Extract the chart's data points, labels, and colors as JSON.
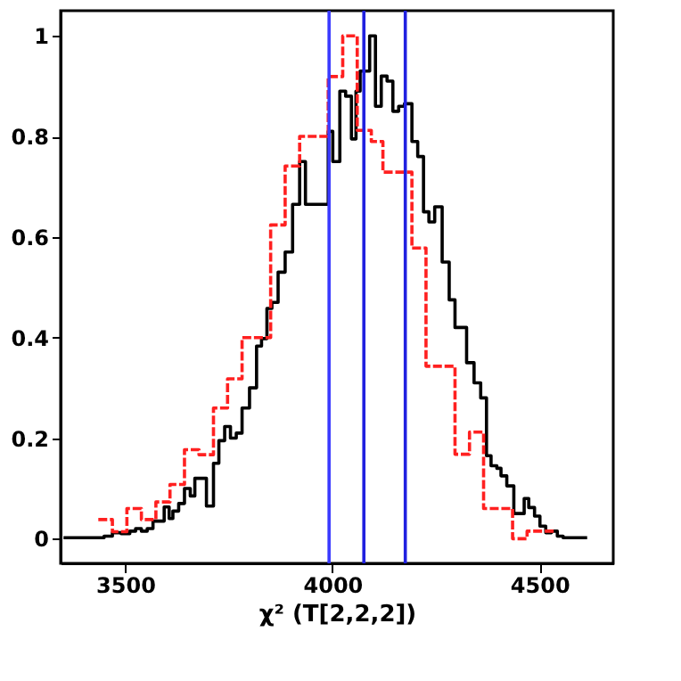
{
  "chart_data": {
    "type": "step",
    "xlabel": "χ² (T[2,2,2])",
    "xlim": [
      3344,
      4678
    ],
    "ylim": [
      -0.049,
      1.05
    ],
    "xticks": [
      3500,
      4000,
      4500
    ],
    "yticks": [
      0,
      0.2,
      0.4,
      0.6,
      0.8,
      1
    ],
    "grid": false,
    "series": [
      {
        "color": "#ff2020",
        "line_style": "dashed",
        "x": [
          3435,
          3469,
          3504,
          3539,
          3574,
          3608,
          3643,
          3678,
          3713,
          3747,
          3782,
          3851,
          3886,
          3921,
          3990,
          4025,
          4060,
          4094,
          4122,
          4192,
          4226,
          4296,
          4331,
          4365,
          4435,
          4470,
          4539
        ],
        "values": [
          0.038,
          0.014,
          0.06,
          0.038,
          0.073,
          0.108,
          0.177,
          0.167,
          0.26,
          0.318,
          0.4,
          0.624,
          0.741,
          0.8,
          0.919,
          1.0,
          0.812,
          0.79,
          0.729,
          0.578,
          0.343,
          0.168,
          0.212,
          0.06,
          0.0,
          0.015,
          0.015
        ]
      },
      {
        "color": "#000000",
        "line_style": "solid",
        "x": [
          3351,
          3449,
          3469,
          3490,
          3511,
          3525,
          3539,
          3553,
          3567,
          3594,
          3606,
          3615,
          3629,
          3643,
          3657,
          3668,
          3696,
          3713,
          3726,
          3740,
          3754,
          3768,
          3782,
          3800,
          3817,
          3829,
          3842,
          3854,
          3869,
          3886,
          3904,
          3921,
          3935,
          3990,
          4001,
          4018,
          4032,
          4046,
          4057,
          4067,
          4090,
          4104,
          4118,
          4132,
          4146,
          4160,
          4174,
          4192,
          4206,
          4220,
          4233,
          4247,
          4265,
          4282,
          4296,
          4324,
          4342,
          4358,
          4372,
          4383,
          4397,
          4407,
          4421,
          4438,
          4463,
          4474,
          4488,
          4501,
          4515,
          4529,
          4543,
          4557,
          4615
        ],
        "values": [
          0.002,
          0.005,
          0.012,
          0.01,
          0.015,
          0.02,
          0.015,
          0.02,
          0.035,
          0.063,
          0.04,
          0.055,
          0.07,
          0.1,
          0.085,
          0.12,
          0.065,
          0.15,
          0.195,
          0.223,
          0.2,
          0.21,
          0.26,
          0.3,
          0.383,
          0.398,
          0.458,
          0.47,
          0.53,
          0.57,
          0.665,
          0.75,
          0.665,
          0.81,
          0.75,
          0.89,
          0.88,
          0.795,
          0.89,
          0.93,
          1.0,
          0.86,
          0.92,
          0.91,
          0.85,
          0.86,
          0.865,
          0.79,
          0.76,
          0.65,
          0.63,
          0.66,
          0.55,
          0.475,
          0.42,
          0.35,
          0.31,
          0.28,
          0.165,
          0.145,
          0.14,
          0.125,
          0.105,
          0.05,
          0.08,
          0.062,
          0.045,
          0.025,
          0.012,
          0.015,
          0.005,
          0.002,
          0.002
        ]
      }
    ],
    "ref_lines": [
      {
        "axis": "x",
        "value": 3992,
        "color": "#3a3aff"
      },
      {
        "axis": "x",
        "value": 4076,
        "color": "#2020e0"
      },
      {
        "axis": "x",
        "value": 4176,
        "color": "#2020e0"
      }
    ]
  }
}
